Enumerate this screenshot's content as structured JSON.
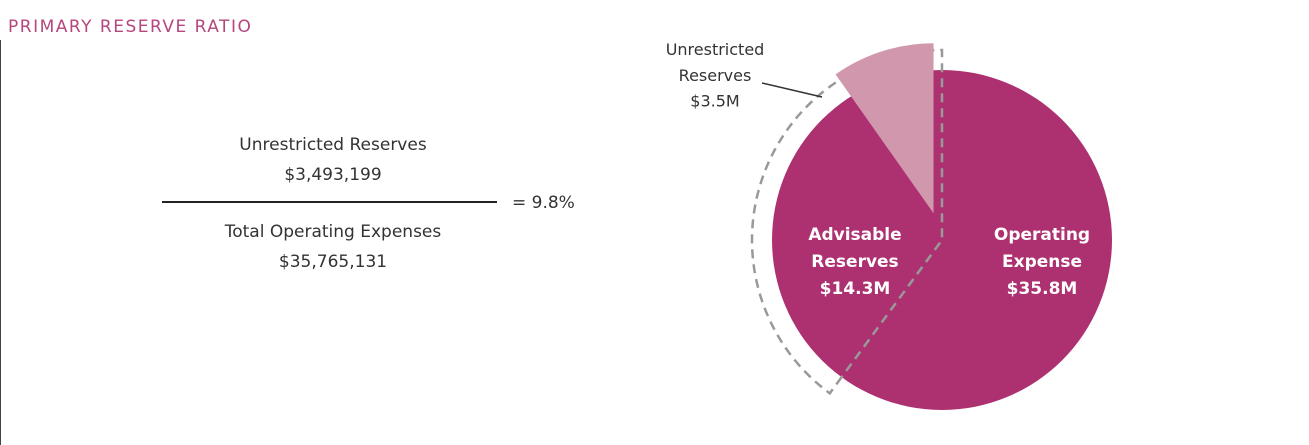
{
  "chart_data": {
    "type": "pie",
    "title": "PRIMARY RESERVE RATIO",
    "formula": {
      "numerator_label": "Unrestricted Reserves",
      "numerator_value": "$3,493,199",
      "denominator_label": "Total Operating Expenses",
      "denominator_value": "$35,765,131",
      "result": "= 9.8%"
    },
    "categories": [
      "Operating Expense",
      "Advisable Reserves",
      "Unrestricted Reserves"
    ],
    "values": [
      35.8,
      14.3,
      3.5
    ],
    "value_labels": [
      "$35.8M",
      "$14.3M",
      "$3.5M"
    ],
    "colors": [
      "#ad3170",
      "#ad3170",
      "#d097ad"
    ]
  }
}
